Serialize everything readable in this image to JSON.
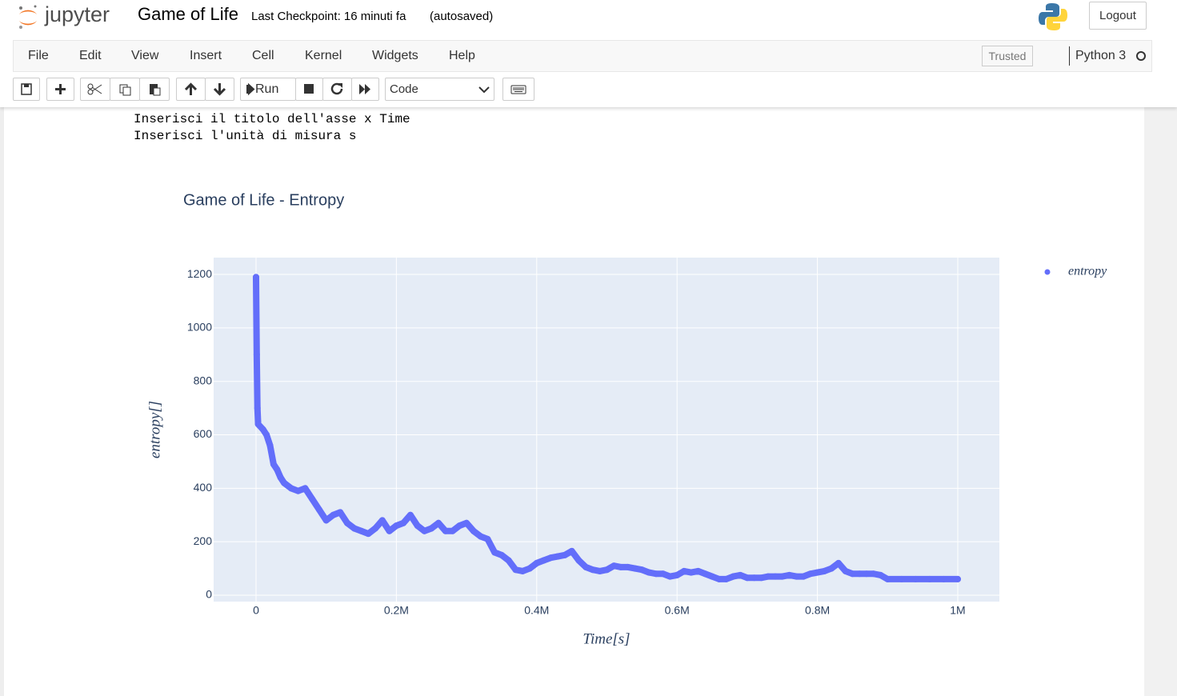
{
  "header": {
    "logo": "jupyter",
    "title": "Game of Life",
    "checkpoint": "Last Checkpoint: 16 minuti fa",
    "autosaved": "(autosaved)",
    "logout": "Logout"
  },
  "menu": {
    "items": [
      "File",
      "Edit",
      "View",
      "Insert",
      "Cell",
      "Kernel",
      "Widgets",
      "Help"
    ],
    "trusted": "Trusted",
    "kernel": "Python 3"
  },
  "toolbar": {
    "run": "Run",
    "cell_type": "Code"
  },
  "output": {
    "lines": [
      "Inserisci il titolo dell'asse x Time",
      "Inserisci l'unità di misura s"
    ]
  },
  "chart_data": {
    "type": "scatter",
    "title": "Game of Life - Entropy",
    "x_label": "Time[s]",
    "y_label": "entropy[]",
    "xlim": [
      -60400,
      1059300
    ],
    "ylim": [
      -24,
      1263
    ],
    "xticks": [
      0,
      {
        "value": 200000,
        "label": "0.2M"
      },
      {
        "value": 400000,
        "label": "0.4M"
      },
      {
        "value": 600000,
        "label": "0.6M"
      },
      {
        "value": 800000,
        "label": "0.8M"
      },
      {
        "value": 1000000,
        "label": "1M"
      }
    ],
    "yticks": [
      0,
      200,
      400,
      600,
      800,
      1000,
      1200
    ],
    "grid": true,
    "series": [
      {
        "name": "entropy",
        "color": "#636efa",
        "x": [
          0,
          1000,
          2000,
          3000,
          10000,
          15000,
          20000,
          25000,
          30000,
          35000,
          40000,
          50000,
          60000,
          70000,
          80000,
          90000,
          100000,
          110000,
          120000,
          130000,
          140000,
          150000,
          160000,
          170000,
          180000,
          190000,
          200000,
          210000,
          220000,
          230000,
          240000,
          250000,
          260000,
          270000,
          280000,
          290000,
          300000,
          310000,
          320000,
          330000,
          340000,
          350000,
          360000,
          370000,
          380000,
          390000,
          400000,
          410000,
          420000,
          430000,
          440000,
          450000,
          460000,
          470000,
          480000,
          490000,
          500000,
          510000,
          520000,
          530000,
          540000,
          550000,
          560000,
          570000,
          580000,
          590000,
          600000,
          610000,
          620000,
          630000,
          640000,
          650000,
          660000,
          670000,
          680000,
          690000,
          700000,
          710000,
          720000,
          730000,
          740000,
          750000,
          760000,
          770000,
          780000,
          790000,
          800000,
          810000,
          820000,
          830000,
          840000,
          850000,
          860000,
          870000,
          880000,
          890000,
          900000,
          920000,
          940000,
          960000,
          980000,
          1000000
        ],
        "values": [
          1190,
          900,
          700,
          640,
          620,
          600,
          560,
          490,
          470,
          440,
          420,
          400,
          390,
          400,
          360,
          320,
          280,
          300,
          310,
          270,
          250,
          240,
          230,
          250,
          280,
          240,
          260,
          270,
          300,
          260,
          240,
          250,
          270,
          240,
          240,
          260,
          270,
          240,
          220,
          210,
          160,
          150,
          130,
          95,
          90,
          100,
          120,
          130,
          140,
          145,
          150,
          165,
          130,
          105,
          95,
          90,
          95,
          110,
          105,
          105,
          100,
          95,
          85,
          80,
          80,
          70,
          75,
          90,
          85,
          90,
          80,
          70,
          60,
          60,
          70,
          75,
          65,
          65,
          65,
          70,
          70,
          70,
          75,
          70,
          70,
          80,
          85,
          90,
          100,
          120,
          90,
          80,
          80,
          80,
          80,
          75,
          60,
          60,
          60,
          60,
          60,
          60
        ]
      }
    ],
    "legend": "top-right"
  }
}
